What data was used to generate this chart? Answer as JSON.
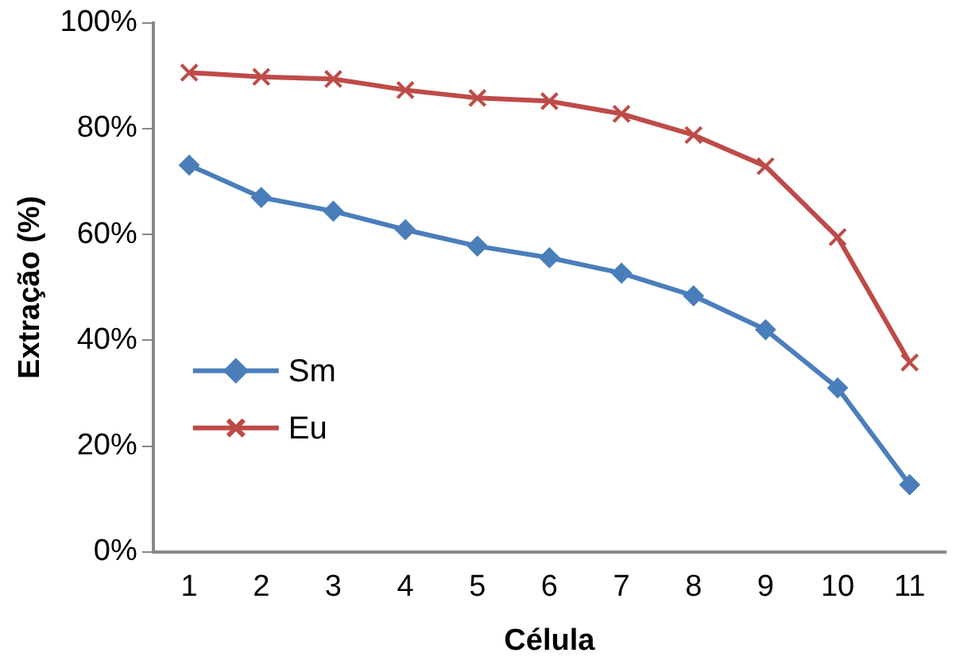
{
  "chart_data": {
    "type": "line",
    "xlabel": "Célula",
    "ylabel": "Extração (%)",
    "categories": [
      "1",
      "2",
      "3",
      "4",
      "5",
      "6",
      "7",
      "8",
      "9",
      "10",
      "11"
    ],
    "ylim": [
      0,
      100
    ],
    "yticks": [
      {
        "value": 0,
        "label": "0%"
      },
      {
        "value": 20,
        "label": "20%"
      },
      {
        "value": 40,
        "label": "40%"
      },
      {
        "value": 60,
        "label": "60%"
      },
      {
        "value": 80,
        "label": "80%"
      },
      {
        "value": 100,
        "label": "100%"
      }
    ],
    "grid": false,
    "legend": "bottom left",
    "line_style": "solid",
    "series": [
      {
        "name": "Sm",
        "color": "#4a7ebb",
        "marker": "diamond",
        "values": [
          73.1,
          67.0,
          64.4,
          60.9,
          57.8,
          55.6,
          52.7,
          48.4,
          42.0,
          31.0,
          12.7
        ]
      },
      {
        "name": "Eu",
        "color": "#be4b48",
        "marker": "cross",
        "values": [
          90.6,
          89.8,
          89.4,
          87.3,
          85.8,
          85.2,
          82.8,
          78.8,
          72.9,
          59.5,
          35.8
        ]
      }
    ]
  }
}
